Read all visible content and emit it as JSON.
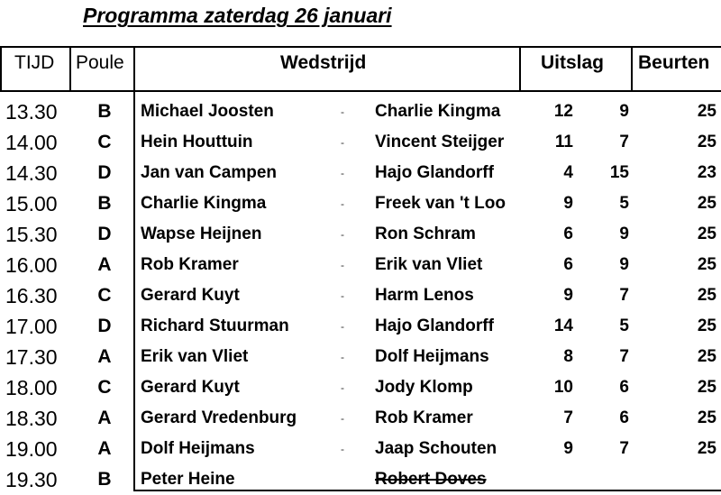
{
  "title": "Programma zaterdag 26 januari",
  "headers": {
    "tijd": "TIJD",
    "poule": "Poule",
    "wedstrijd": "Wedstrijd",
    "uitslag": "Uitslag",
    "beurten": "Beurten"
  },
  "rows": [
    {
      "time": "13.30",
      "poule": "B",
      "player1": "Michael Joosten",
      "sep": "-",
      "player2": "Charlie Kingma",
      "score1": "12",
      "score2": "9",
      "beurten": "25"
    },
    {
      "time": "14.00",
      "poule": "C",
      "player1": "Hein Houttuin",
      "sep": "-",
      "player2": "Vincent Steijger",
      "score1": "11",
      "score2": "7",
      "beurten": "25"
    },
    {
      "time": "14.30",
      "poule": "D",
      "player1": "Jan van Campen",
      "sep": "-",
      "player2": "Hajo Glandorff",
      "score1": "4",
      "score2": "15",
      "beurten": "23"
    },
    {
      "time": "15.00",
      "poule": "B",
      "player1": "Charlie Kingma",
      "sep": "-",
      "player2": "Freek van 't Loo",
      "score1": "9",
      "score2": "5",
      "beurten": "25"
    },
    {
      "time": "15.30",
      "poule": "D",
      "player1": "Wapse Heijnen",
      "sep": "-",
      "player2": "Ron Schram",
      "score1": "6",
      "score2": "9",
      "beurten": "25"
    },
    {
      "time": "16.00",
      "poule": "A",
      "player1": "Rob Kramer",
      "sep": "-",
      "player2": "Erik van Vliet",
      "score1": "6",
      "score2": "9",
      "beurten": "25"
    },
    {
      "time": "16.30",
      "poule": "C",
      "player1": "Gerard Kuyt",
      "sep": "-",
      "player2": "Harm Lenos",
      "score1": "9",
      "score2": "7",
      "beurten": "25"
    },
    {
      "time": "17.00",
      "poule": "D",
      "player1": "Richard Stuurman",
      "sep": "-",
      "player2": "Hajo Glandorff",
      "score1": "14",
      "score2": "5",
      "beurten": "25"
    },
    {
      "time": "17.30",
      "poule": "A",
      "player1": "Erik van Vliet",
      "sep": "-",
      "player2": "Dolf Heijmans",
      "score1": "8",
      "score2": "7",
      "beurten": "25"
    },
    {
      "time": "18.00",
      "poule": "C",
      "player1": "Gerard Kuyt",
      "sep": "-",
      "player2": "Jody Klomp",
      "score1": "10",
      "score2": "6",
      "beurten": "25"
    },
    {
      "time": "18.30",
      "poule": "A",
      "player1": "Gerard Vredenburg",
      "sep": "-",
      "player2": "Rob Kramer",
      "score1": "7",
      "score2": "6",
      "beurten": "25"
    },
    {
      "time": "19.00",
      "poule": "A",
      "player1": "Dolf Heijmans",
      "sep": "-",
      "player2": "Jaap Schouten",
      "score1": "9",
      "score2": "7",
      "beurten": "25"
    },
    {
      "time": "19.30",
      "poule": "B",
      "player1": "Peter Heine",
      "sep": "",
      "player2": "Robert Doves",
      "score1": "",
      "score2": "",
      "beurten": ""
    }
  ]
}
